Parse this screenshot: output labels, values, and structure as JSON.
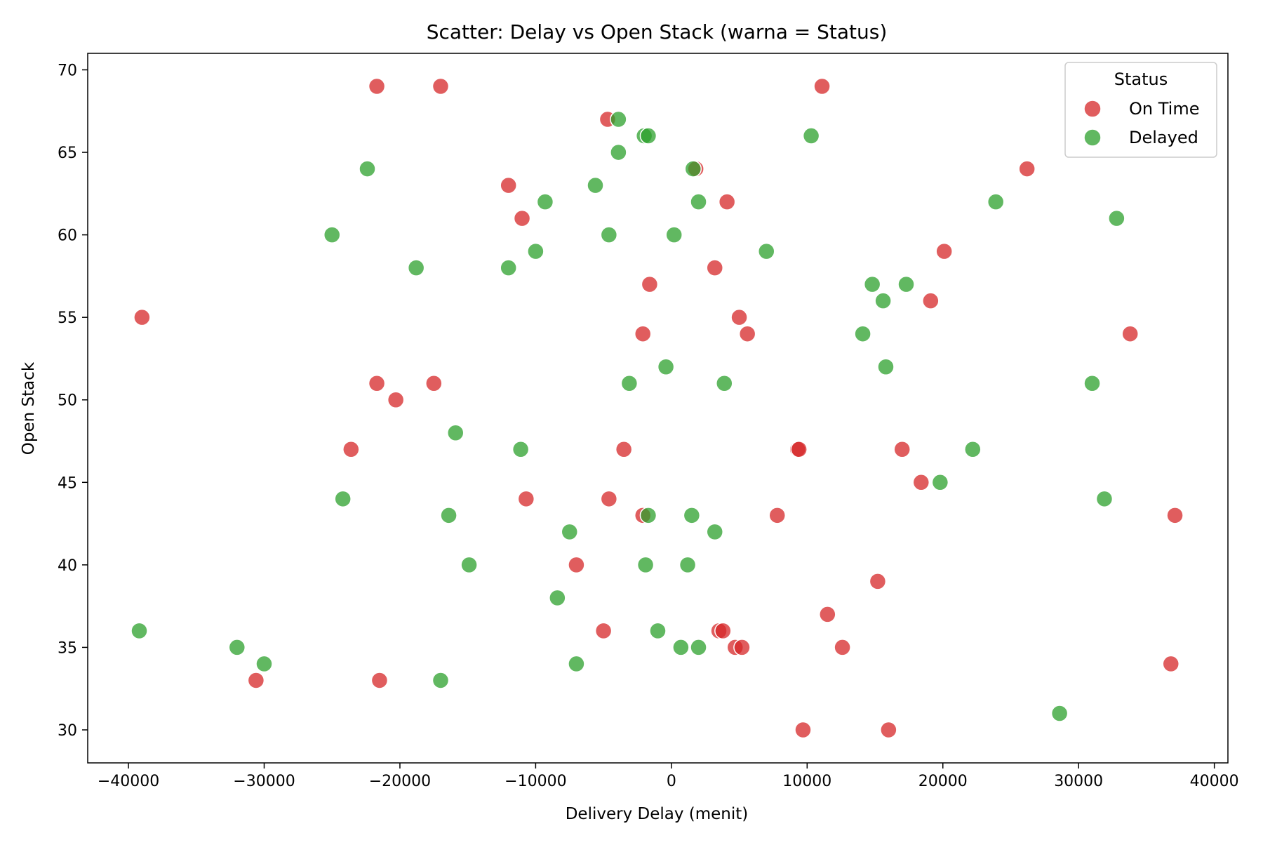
{
  "chart_data": {
    "type": "scatter",
    "title": "Scatter: Delay vs Open Stack (warna = Status)",
    "xlabel": "Delivery Delay (menit)",
    "ylabel": "Open Stack",
    "xlim": [
      -43000,
      41000
    ],
    "ylim": [
      28,
      71
    ],
    "xticks": [
      -40000,
      -30000,
      -20000,
      -10000,
      0,
      10000,
      20000,
      30000,
      40000
    ],
    "xtick_labels": [
      "−40000",
      "−30000",
      "−20000",
      "−10000",
      "0",
      "10000",
      "20000",
      "30000",
      "40000"
    ],
    "yticks": [
      30,
      35,
      40,
      45,
      50,
      55,
      60,
      65,
      70
    ],
    "ytick_labels": [
      "30",
      "35",
      "40",
      "45",
      "50",
      "55",
      "60",
      "65",
      "70"
    ],
    "grid": false,
    "legend": {
      "title": "Status",
      "position": "top-right"
    },
    "series": [
      {
        "name": "On Time",
        "color": "#d62728",
        "points": [
          [
            -21700,
            69
          ],
          [
            -17000,
            69
          ],
          [
            11100,
            69
          ],
          [
            -4700,
            67
          ],
          [
            1800,
            64
          ],
          [
            26200,
            64
          ],
          [
            -12000,
            63
          ],
          [
            4100,
            62
          ],
          [
            -11000,
            61
          ],
          [
            20100,
            59
          ],
          [
            3200,
            58
          ],
          [
            -1600,
            57
          ],
          [
            19100,
            56
          ],
          [
            -39000,
            55
          ],
          [
            5000,
            55
          ],
          [
            -2100,
            54
          ],
          [
            5600,
            54
          ],
          [
            33800,
            54
          ],
          [
            -21700,
            51
          ],
          [
            -17500,
            51
          ],
          [
            -20300,
            50
          ],
          [
            -23600,
            47
          ],
          [
            -3500,
            47
          ],
          [
            9300,
            47
          ],
          [
            9400,
            47
          ],
          [
            17000,
            47
          ],
          [
            18400,
            45
          ],
          [
            -10700,
            44
          ],
          [
            -4600,
            44
          ],
          [
            -2100,
            43
          ],
          [
            7800,
            43
          ],
          [
            37100,
            43
          ],
          [
            -7000,
            40
          ],
          [
            15200,
            39
          ],
          [
            11500,
            37
          ],
          [
            -5000,
            36
          ],
          [
            3500,
            36
          ],
          [
            3800,
            36
          ],
          [
            4700,
            35
          ],
          [
            5200,
            35
          ],
          [
            12600,
            35
          ],
          [
            36800,
            34
          ],
          [
            -30600,
            33
          ],
          [
            -21500,
            33
          ],
          [
            9700,
            30
          ],
          [
            16000,
            30
          ]
        ]
      },
      {
        "name": "Delayed",
        "color": "#2ca02c",
        "points": [
          [
            -3900,
            67
          ],
          [
            -2000,
            66
          ],
          [
            -1700,
            66
          ],
          [
            10300,
            66
          ],
          [
            -3900,
            65
          ],
          [
            -22400,
            64
          ],
          [
            1600,
            64
          ],
          [
            -5600,
            63
          ],
          [
            -9300,
            62
          ],
          [
            2000,
            62
          ],
          [
            23900,
            62
          ],
          [
            32800,
            61
          ],
          [
            -25000,
            60
          ],
          [
            -4600,
            60
          ],
          [
            200,
            60
          ],
          [
            -10000,
            59
          ],
          [
            7000,
            59
          ],
          [
            -18800,
            58
          ],
          [
            -12000,
            58
          ],
          [
            14800,
            57
          ],
          [
            17300,
            57
          ],
          [
            15600,
            56
          ],
          [
            14100,
            54
          ],
          [
            -400,
            52
          ],
          [
            15800,
            52
          ],
          [
            -3100,
            51
          ],
          [
            3900,
            51
          ],
          [
            31000,
            51
          ],
          [
            -15900,
            48
          ],
          [
            -11100,
            47
          ],
          [
            22200,
            47
          ],
          [
            19800,
            45
          ],
          [
            -24200,
            44
          ],
          [
            31900,
            44
          ],
          [
            -16400,
            43
          ],
          [
            -1700,
            43
          ],
          [
            1500,
            43
          ],
          [
            -7500,
            42
          ],
          [
            3200,
            42
          ],
          [
            -14900,
            40
          ],
          [
            -1900,
            40
          ],
          [
            1200,
            40
          ],
          [
            -8400,
            38
          ],
          [
            -39200,
            36
          ],
          [
            -1000,
            36
          ],
          [
            -32000,
            35
          ],
          [
            700,
            35
          ],
          [
            2000,
            35
          ],
          [
            -30000,
            34
          ],
          [
            -7000,
            34
          ],
          [
            -17000,
            33
          ],
          [
            28600,
            31
          ]
        ]
      }
    ]
  }
}
